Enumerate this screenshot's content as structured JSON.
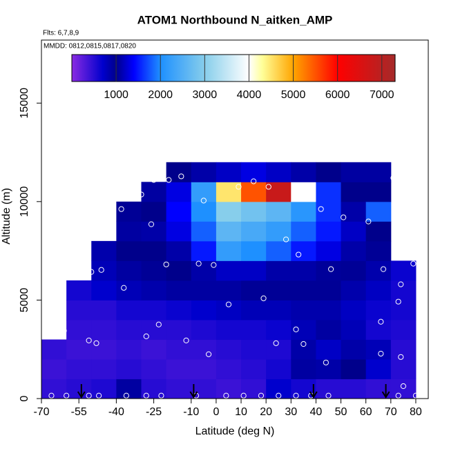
{
  "chart_data": {
    "type": "heatmap",
    "title": "ATOM1 Northbound N_aitken_AMP",
    "subtitle": "Flts: 6,7,8,9",
    "annotation": "MMDD: 0812,0815,0817,0820",
    "x_label": "Latitude (deg N)",
    "y_label": "Altitude (m)",
    "xlim": [
      -70,
      85
    ],
    "ylim": [
      0,
      18200
    ],
    "xticks": [
      -70,
      -55,
      -40,
      -25,
      -10,
      0,
      10,
      20,
      30,
      40,
      50,
      60,
      70,
      80
    ],
    "yticks": [
      0,
      5000,
      10000,
      15000
    ],
    "x": [
      -65,
      -55,
      -45,
      -35,
      -25,
      -15,
      -5,
      5,
      15,
      25,
      35,
      45,
      55,
      65,
      75
    ],
    "y": [
      500,
      1500,
      2500,
      3500,
      4500,
      5500,
      6500,
      7500,
      8500,
      9500,
      10500,
      11500
    ],
    "values": [
      [
        450,
        400,
        450,
        null,
        null,
        null,
        null,
        null,
        null,
        null,
        null,
        null
      ],
      [
        500,
        450,
        400,
        450,
        500,
        600,
        null,
        null,
        null,
        null,
        null,
        null
      ],
      [
        550,
        450,
        400,
        450,
        500,
        700,
        800,
        850,
        null,
        null,
        null,
        null
      ],
      [
        900,
        500,
        450,
        500,
        600,
        800,
        900,
        1000,
        900,
        950,
        null,
        null
      ],
      [
        500,
        450,
        400,
        500,
        600,
        850,
        950,
        1000,
        1100,
        1000,
        900,
        null
      ],
      [
        450,
        400,
        450,
        500,
        650,
        900,
        1000,
        1100,
        1300,
        1400,
        1300,
        1000
      ],
      [
        450,
        400,
        450,
        550,
        700,
        900,
        1100,
        1500,
        1800,
        2000,
        2200,
        1100
      ],
      [
        400,
        450,
        500,
        600,
        750,
        900,
        1200,
        2200,
        2600,
        3000,
        4500,
        1200
      ],
      [
        450,
        500,
        550,
        600,
        800,
        950,
        1200,
        2000,
        2400,
        2800,
        5500,
        1300
      ],
      [
        700,
        600,
        550,
        650,
        800,
        950,
        1100,
        1800,
        2200,
        2600,
        6800,
        1200
      ],
      [
        600,
        900,
        1100,
        800,
        850,
        950,
        1100,
        1500,
        1800,
        2100,
        4000,
        1100
      ],
      [
        500,
        1100,
        1200,
        900,
        850,
        950,
        1050,
        1300,
        1500,
        1600,
        1600,
        1000
      ],
      [
        500,
        1000,
        1100,
        800,
        750,
        850,
        950,
        1100,
        1200,
        1100,
        1000,
        900
      ],
      [
        450,
        700,
        800,
        600,
        650,
        750,
        850,
        950,
        1000,
        1800,
        1000,
        900
      ],
      [
        450,
        500,
        500,
        550,
        600,
        600,
        650,
        null,
        null,
        null,
        null,
        null
      ]
    ],
    "points": {
      "x": [
        -66,
        -60,
        -51,
        -47,
        -36,
        -28,
        -22,
        -8,
        4,
        11,
        18,
        25,
        32,
        38,
        45,
        73,
        80,
        -66,
        -61,
        -51,
        -48,
        -28,
        -23,
        -12,
        -3,
        24,
        32,
        35,
        44,
        66,
        74,
        75,
        66,
        -46,
        -50,
        -37,
        -20,
        -7,
        -1,
        5,
        19,
        33,
        46,
        67,
        74,
        73,
        79,
        -52,
        -44,
        -38,
        -30,
        -26,
        -25,
        -19,
        -14,
        -5,
        9,
        15,
        21,
        28,
        34,
        42,
        51,
        61,
        72,
        72,
        71
      ],
      "y": [
        150,
        150,
        150,
        150,
        150,
        150,
        150,
        150,
        150,
        150,
        150,
        150,
        150,
        150,
        150,
        150,
        150,
        3160,
        3440,
        2950,
        2810,
        3160,
        3760,
        2950,
        2250,
        2810,
        3510,
        2770,
        1830,
        2280,
        2110,
        630,
        3900,
        6530,
        6430,
        5620,
        6810,
        6850,
        6780,
        4780,
        5090,
        7310,
        6570,
        6570,
        5800,
        4920,
        6850,
        8710,
        9270,
        9620,
        10360,
        8850,
        11100,
        11100,
        11280,
        10050,
        10750,
        11030,
        10750,
        8080,
        10360,
        9620,
        9200,
        8990,
        8570,
        9940,
        11200
      ],
      "color": "#ffffff"
    },
    "profiles": [
      -54,
      -9,
      39,
      68
    ],
    "colorscale": [
      [
        0,
        "#8a2be2"
      ],
      [
        700,
        "#0000cd"
      ],
      [
        1000,
        "#00008b"
      ],
      [
        1400,
        "#0000ff"
      ],
      [
        2000,
        "#1e90ff"
      ],
      [
        3000,
        "#87ceeb"
      ],
      [
        4000,
        "#ffffff"
      ],
      [
        4300,
        "#ffff99"
      ],
      [
        5000,
        "#ffa500"
      ],
      [
        6000,
        "#ff0000"
      ],
      [
        7300,
        "#a52a2a"
      ]
    ],
    "colorbar": {
      "lim": [
        0,
        7300
      ],
      "ticks": [
        1000,
        2000,
        3000,
        4000,
        5000,
        6000,
        7000
      ]
    }
  }
}
